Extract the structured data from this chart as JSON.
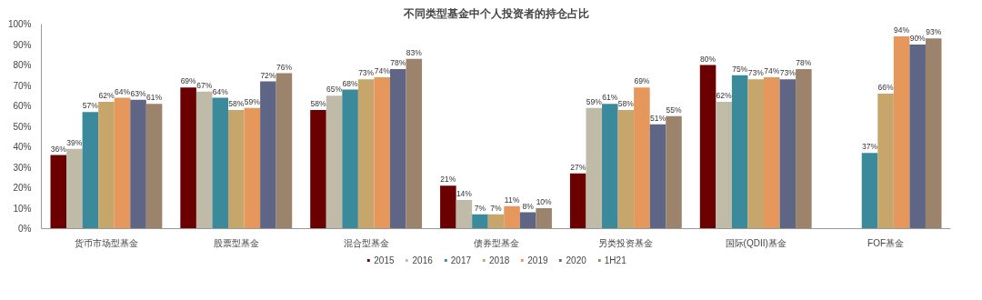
{
  "chart_data": {
    "type": "bar",
    "title": "不同类型基金中个人投资者的持仓占比",
    "categories": [
      "货币市场型基金",
      "股票型基金",
      "混合型基金",
      "债券型基金",
      "另类投资基金",
      "国际(QDII)基金",
      "FOF基金"
    ],
    "series": [
      {
        "name": "2015",
        "color": "#6b0000",
        "values": [
          36,
          69,
          58,
          21,
          27,
          80,
          null
        ],
        "value_labels": [
          "36%",
          "69%",
          "58%",
          "21%",
          "27%",
          "80%",
          null
        ]
      },
      {
        "name": "2016",
        "color": "#bfbba8",
        "values": [
          39,
          67,
          65,
          14,
          59,
          62,
          null
        ],
        "value_labels": [
          "39%",
          "67%",
          "65%",
          "14%",
          "59%",
          "62%",
          null
        ]
      },
      {
        "name": "2017",
        "color": "#3a8a9c",
        "values": [
          57,
          64,
          68,
          7,
          61,
          75,
          37
        ],
        "value_labels": [
          "57%",
          "64%",
          "68%",
          "7%",
          "61%",
          "75%",
          "37%"
        ]
      },
      {
        "name": "2018",
        "color": "#c6a66a",
        "values": [
          62,
          58,
          73,
          7,
          58,
          73,
          66
        ],
        "value_labels": [
          "62%",
          "58%",
          "73%",
          "7%",
          "58%",
          "73%",
          "66%"
        ]
      },
      {
        "name": "2019",
        "color": "#e6975c",
        "values": [
          64,
          59,
          74,
          11,
          69,
          74,
          94
        ],
        "value_labels": [
          "64%",
          "59%",
          "74%",
          "11%",
          "69%",
          "74%",
          "94%"
        ]
      },
      {
        "name": "2020",
        "color": "#5f6584",
        "values": [
          63,
          72,
          78,
          8,
          51,
          73,
          90
        ],
        "value_labels": [
          "63%",
          "72%",
          "78%",
          "8%",
          "51%",
          "73%",
          "90%"
        ]
      },
      {
        "name": "1H21",
        "color": "#9c846c",
        "values": [
          61,
          76,
          83,
          10,
          55,
          78,
          93
        ],
        "value_labels": [
          "61%",
          "76%",
          "83%",
          "10%",
          "55%",
          "78%",
          "93%"
        ]
      }
    ],
    "ylim": [
      0,
      100
    ],
    "yticks": [
      {
        "value": 0,
        "label": "0%"
      },
      {
        "value": 10,
        "label": "10%"
      },
      {
        "value": 20,
        "label": "20%"
      },
      {
        "value": 30,
        "label": "30%"
      },
      {
        "value": 40,
        "label": "40%"
      },
      {
        "value": 50,
        "label": "50%"
      },
      {
        "value": 60,
        "label": "60%"
      },
      {
        "value": 70,
        "label": "70%"
      },
      {
        "value": 80,
        "label": "80%"
      },
      {
        "value": 90,
        "label": "90%"
      },
      {
        "value": 100,
        "label": "100%"
      }
    ],
    "legend": "bottom"
  }
}
